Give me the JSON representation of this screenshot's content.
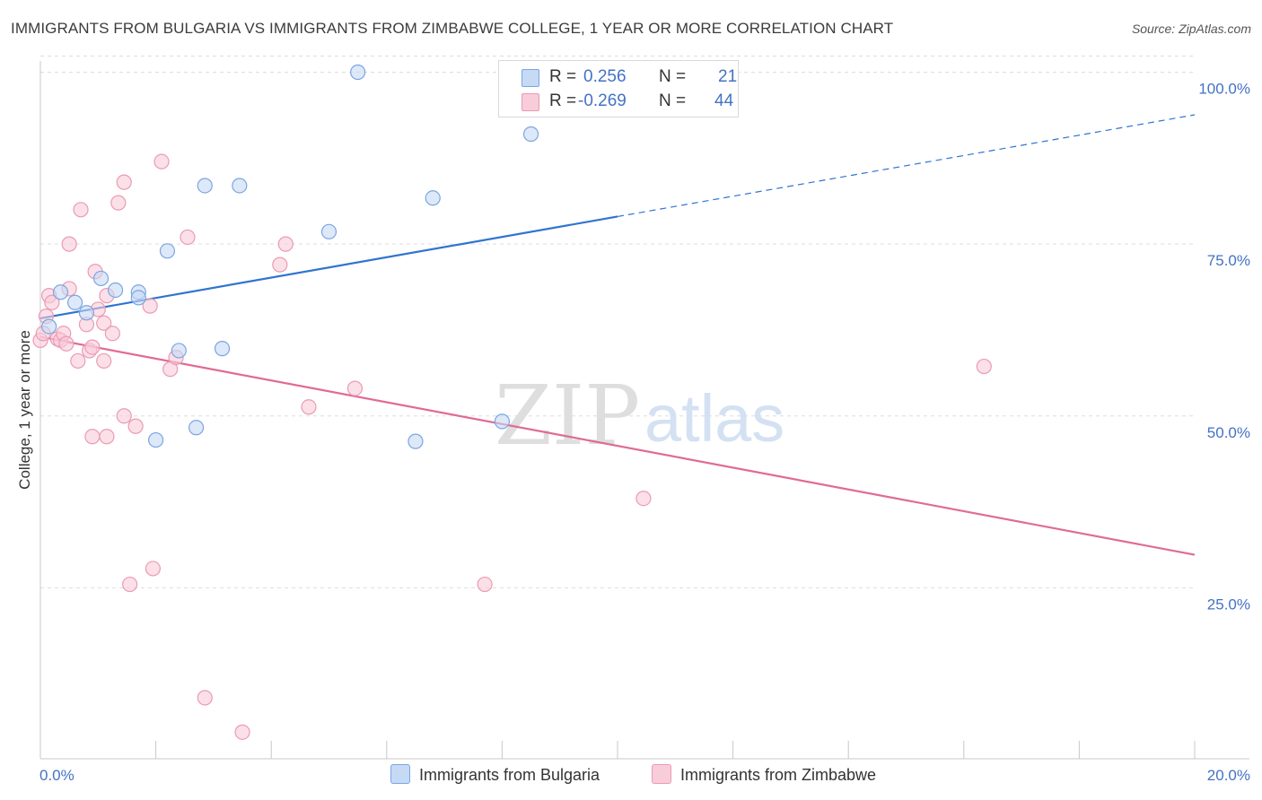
{
  "title": "IMMIGRANTS FROM BULGARIA VS IMMIGRANTS FROM ZIMBABWE COLLEGE, 1 YEAR OR MORE CORRELATION CHART",
  "source": "Source: ZipAtlas.com",
  "watermark": {
    "zip": "ZIP",
    "atlas": "atlas"
  },
  "legend": {
    "r_label": "R =",
    "n_label": "N =",
    "series": [
      {
        "r": "0.256",
        "n": "21"
      },
      {
        "r": "-0.269",
        "n": "44"
      }
    ]
  },
  "bottom_legend": [
    "Immigrants from Bulgaria",
    "Immigrants from Zimbabwe"
  ],
  "colors": {
    "bulgaria_fill": "#c6d9f5",
    "bulgaria_stroke": "#7aa6e0",
    "bulgaria_line": "#2f74d0",
    "zimbabwe_fill": "#f9ccd9",
    "zimbabwe_stroke": "#eb9ab5",
    "zimbabwe_line": "#e06a96",
    "grid": "#dddddd",
    "axis_text": "#4472c4"
  },
  "chart_data": {
    "type": "scatter",
    "title": "IMMIGRANTS FROM BULGARIA VS IMMIGRANTS FROM ZIMBABWE COLLEGE, 1 YEAR OR MORE CORRELATION CHART",
    "xlabel": "",
    "ylabel": "College, 1 year or more",
    "xlim": [
      0,
      20
    ],
    "ylim": [
      0,
      102
    ],
    "x_tick_labels": [
      "0.0%",
      "20.0%"
    ],
    "y_ticks": [
      25,
      50,
      75,
      100
    ],
    "y_tick_labels": [
      "25.0%",
      "50.0%",
      "75.0%",
      "100.0%"
    ],
    "grid": true,
    "legend_position": "top-center",
    "series": [
      {
        "name": "Immigrants from Bulgaria",
        "r": 0.256,
        "n": 21,
        "points": [
          [
            0.15,
            63
          ],
          [
            0.35,
            68
          ],
          [
            0.6,
            66.5
          ],
          [
            0.8,
            65
          ],
          [
            1.05,
            70
          ],
          [
            1.3,
            68.3
          ],
          [
            1.7,
            68
          ],
          [
            1.7,
            67.2
          ],
          [
            2.2,
            74
          ],
          [
            2.4,
            59.5
          ],
          [
            2.85,
            83.5
          ],
          [
            3.45,
            83.5
          ],
          [
            2.0,
            46.5
          ],
          [
            2.7,
            48.3
          ],
          [
            3.15,
            59.8
          ],
          [
            5.0,
            76.8
          ],
          [
            5.5,
            100
          ],
          [
            6.5,
            46.3
          ],
          [
            6.8,
            81.7
          ],
          [
            8.0,
            49.2
          ],
          [
            8.5,
            91
          ]
        ],
        "trend": {
          "x_start": 0,
          "y_start": 64.2,
          "x_solid_end": 10,
          "y_solid_end": 79,
          "x_end": 20,
          "y_end": 93.8
        }
      },
      {
        "name": "Immigrants from Zimbabwe",
        "r": -0.269,
        "n": 44,
        "points": [
          [
            0.0,
            61
          ],
          [
            0.05,
            62
          ],
          [
            0.1,
            64.5
          ],
          [
            0.15,
            67.5
          ],
          [
            0.2,
            66.5
          ],
          [
            0.3,
            61.2
          ],
          [
            0.35,
            61
          ],
          [
            0.4,
            62
          ],
          [
            0.45,
            60.5
          ],
          [
            0.5,
            68.5
          ],
          [
            0.5,
            75
          ],
          [
            0.65,
            58
          ],
          [
            0.7,
            80
          ],
          [
            0.8,
            63.3
          ],
          [
            0.85,
            59.5
          ],
          [
            0.9,
            60
          ],
          [
            0.9,
            47
          ],
          [
            0.95,
            71
          ],
          [
            1.0,
            65.5
          ],
          [
            1.1,
            58
          ],
          [
            1.1,
            63.5
          ],
          [
            1.15,
            67.5
          ],
          [
            1.15,
            47
          ],
          [
            1.25,
            62
          ],
          [
            1.35,
            81
          ],
          [
            1.45,
            84
          ],
          [
            1.45,
            50
          ],
          [
            1.55,
            25.5
          ],
          [
            1.65,
            48.5
          ],
          [
            1.9,
            66
          ],
          [
            1.95,
            27.8
          ],
          [
            2.1,
            87
          ],
          [
            2.25,
            56.8
          ],
          [
            2.35,
            58.5
          ],
          [
            2.85,
            9
          ],
          [
            2.55,
            76
          ],
          [
            3.5,
            4
          ],
          [
            4.15,
            72
          ],
          [
            4.25,
            75
          ],
          [
            4.65,
            51.3
          ],
          [
            5.45,
            54
          ],
          [
            7.7,
            25.5
          ],
          [
            10.45,
            38
          ],
          [
            16.35,
            57.2
          ]
        ],
        "trend": {
          "x_start": 0,
          "y_start": 61.5,
          "x_end": 20,
          "y_end": 29.8
        }
      }
    ]
  }
}
